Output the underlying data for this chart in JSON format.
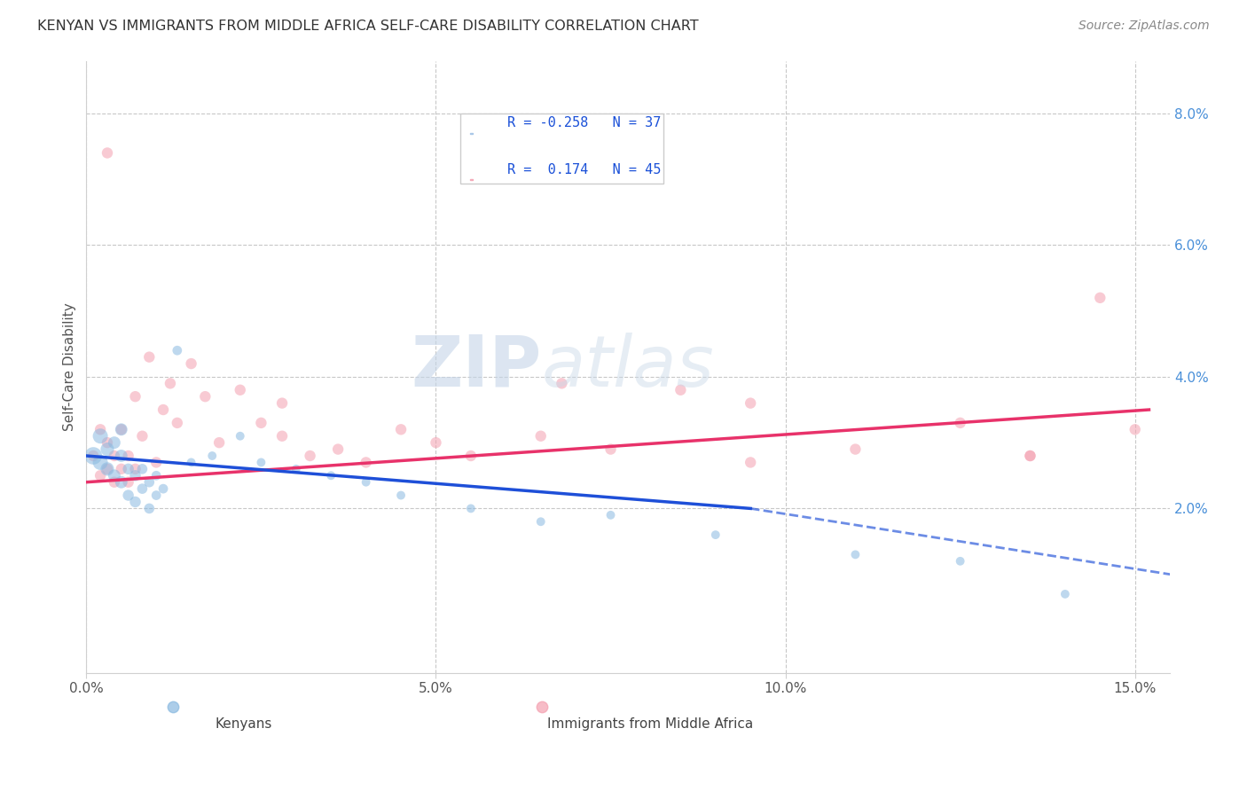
{
  "title": "KENYAN VS IMMIGRANTS FROM MIDDLE AFRICA SELF-CARE DISABILITY CORRELATION CHART",
  "source": "Source: ZipAtlas.com",
  "ylabel": "Self-Care Disability",
  "xlim": [
    0.0,
    0.155
  ],
  "ylim": [
    -0.005,
    0.088
  ],
  "x_ticks": [
    0.0,
    0.05,
    0.1,
    0.15
  ],
  "x_tick_labels": [
    "0.0%",
    "5.0%",
    "10.0%",
    "15.0%"
  ],
  "y_ticks_right": [
    0.02,
    0.04,
    0.06,
    0.08
  ],
  "y_tick_labels_right": [
    "2.0%",
    "4.0%",
    "6.0%",
    "8.0%"
  ],
  "kenyan_R": -0.258,
  "kenyan_N": 37,
  "immigrant_R": 0.174,
  "immigrant_N": 45,
  "kenyan_color": "#89b9e0",
  "immigrant_color": "#f4a0b0",
  "kenyan_line_color": "#1e4fd8",
  "immigrant_line_color": "#e8326a",
  "background_color": "#ffffff",
  "grid_color": "#c8c8c8",
  "kenyan_x": [
    0.001,
    0.002,
    0.002,
    0.003,
    0.003,
    0.004,
    0.004,
    0.005,
    0.005,
    0.005,
    0.006,
    0.006,
    0.007,
    0.007,
    0.008,
    0.008,
    0.009,
    0.009,
    0.01,
    0.01,
    0.011,
    0.013,
    0.015,
    0.018,
    0.022,
    0.025,
    0.03,
    0.035,
    0.04,
    0.045,
    0.055,
    0.065,
    0.075,
    0.09,
    0.11,
    0.125,
    0.14
  ],
  "kenyan_y": [
    0.028,
    0.027,
    0.031,
    0.026,
    0.029,
    0.025,
    0.03,
    0.024,
    0.028,
    0.032,
    0.022,
    0.026,
    0.021,
    0.025,
    0.023,
    0.026,
    0.02,
    0.024,
    0.022,
    0.025,
    0.023,
    0.044,
    0.027,
    0.028,
    0.031,
    0.027,
    0.026,
    0.025,
    0.024,
    0.022,
    0.02,
    0.018,
    0.019,
    0.016,
    0.013,
    0.012,
    0.007
  ],
  "kenyan_size": [
    200,
    150,
    150,
    120,
    120,
    100,
    100,
    100,
    100,
    100,
    80,
    80,
    80,
    80,
    70,
    70,
    70,
    70,
    60,
    60,
    60,
    60,
    50,
    50,
    50,
    50,
    50,
    50,
    50,
    50,
    50,
    50,
    50,
    50,
    50,
    50,
    50
  ],
  "immigrant_x": [
    0.001,
    0.002,
    0.002,
    0.003,
    0.003,
    0.004,
    0.004,
    0.005,
    0.005,
    0.006,
    0.006,
    0.007,
    0.008,
    0.009,
    0.01,
    0.011,
    0.012,
    0.013,
    0.015,
    0.017,
    0.019,
    0.022,
    0.025,
    0.028,
    0.032,
    0.036,
    0.04,
    0.045,
    0.05,
    0.055,
    0.065,
    0.075,
    0.085,
    0.095,
    0.11,
    0.125,
    0.135,
    0.145,
    0.15,
    0.003,
    0.007,
    0.028,
    0.068,
    0.095,
    0.135
  ],
  "immigrant_y": [
    0.028,
    0.025,
    0.032,
    0.026,
    0.03,
    0.024,
    0.028,
    0.026,
    0.032,
    0.024,
    0.028,
    0.026,
    0.031,
    0.043,
    0.027,
    0.035,
    0.039,
    0.033,
    0.042,
    0.037,
    0.03,
    0.038,
    0.033,
    0.031,
    0.028,
    0.029,
    0.027,
    0.032,
    0.03,
    0.028,
    0.031,
    0.029,
    0.038,
    0.027,
    0.029,
    0.033,
    0.028,
    0.052,
    0.032,
    0.074,
    0.037,
    0.036,
    0.039,
    0.036,
    0.028
  ],
  "immigrant_size": [
    80,
    80,
    80,
    80,
    80,
    80,
    80,
    80,
    80,
    80,
    80,
    80,
    80,
    80,
    80,
    80,
    80,
    80,
    80,
    80,
    80,
    80,
    80,
    80,
    80,
    80,
    80,
    80,
    80,
    80,
    80,
    80,
    80,
    80,
    80,
    80,
    80,
    80,
    80,
    80,
    80,
    80,
    80,
    80,
    80
  ],
  "k_line_x0": 0.0,
  "k_line_x_solid_end": 0.095,
  "k_line_x_dash_end": 0.155,
  "k_line_y0": 0.028,
  "k_line_y_solid_end": 0.02,
  "k_line_y_dash_end": 0.01,
  "i_line_x0": 0.0,
  "i_line_x_end": 0.152,
  "i_line_y0": 0.024,
  "i_line_y_end": 0.035,
  "legend_kenyan_label": "Kenyans",
  "legend_immigrant_label": "Immigrants from Middle Africa"
}
